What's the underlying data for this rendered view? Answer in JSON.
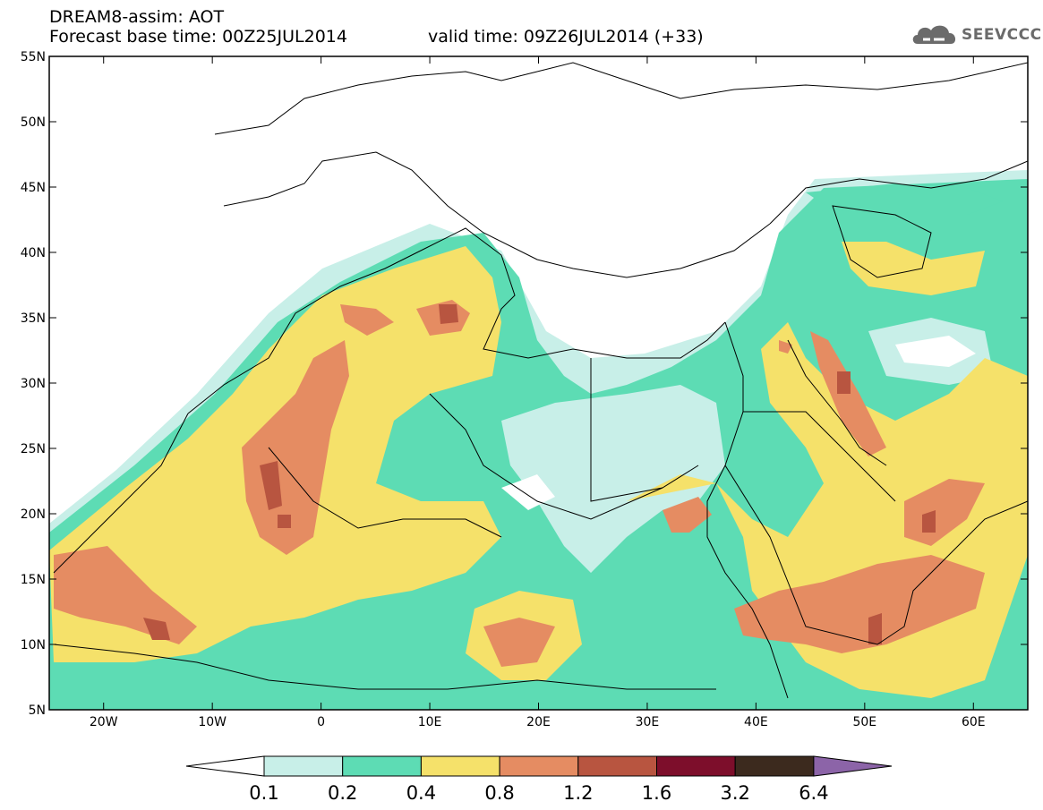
{
  "header": {
    "line1": "DREAM8-assim: AOT",
    "line2": "Forecast base time: 00Z25JUL2014",
    "line3": "valid time: 09Z26JUL2014 (+33)",
    "logo_text": "SEEVCCC",
    "logo_icon": "cloud-icon"
  },
  "map": {
    "lat_labels": [
      "55N",
      "50N",
      "45N",
      "40N",
      "35N",
      "30N",
      "25N",
      "20N",
      "15N",
      "10N",
      "5N"
    ],
    "lat_values": [
      55,
      50,
      45,
      40,
      35,
      30,
      25,
      20,
      15,
      10,
      5
    ],
    "lon_labels": [
      "20W",
      "10W",
      "0",
      "10E",
      "20E",
      "30E",
      "40E",
      "50E",
      "60E"
    ],
    "lon_values": [
      -20,
      -10,
      0,
      10,
      20,
      30,
      40,
      50,
      60
    ],
    "lon_range": [
      -25,
      65
    ],
    "lat_range": [
      5,
      55
    ],
    "field": "AOT"
  },
  "colorbar": {
    "tick_labels": [
      "0.1",
      "0.2",
      "0.4",
      "0.8",
      "1.2",
      "1.6",
      "3.2",
      "6.4"
    ],
    "colors": [
      "#ffffff",
      "#c8efe8",
      "#5ddcb4",
      "#f5e16a",
      "#e58c62",
      "#b85540",
      "#7d0e2b",
      "#3c2a1e",
      "#8c64a8"
    ]
  }
}
